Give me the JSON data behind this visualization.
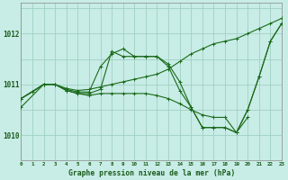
{
  "title": "Graphe pression niveau de la mer (hPa)",
  "bg_color": "#c8ece6",
  "grid_color_major": "#99ccbb",
  "grid_color_minor": "#aaddcc",
  "line_color": "#1a6b1a",
  "xlim": [
    0,
    23
  ],
  "ylim": [
    1009.5,
    1012.6
  ],
  "yticks": [
    1010,
    1011,
    1012
  ],
  "xticks": [
    0,
    1,
    2,
    3,
    4,
    5,
    6,
    7,
    8,
    9,
    10,
    11,
    12,
    13,
    14,
    15,
    16,
    17,
    18,
    19,
    20,
    21,
    22,
    23
  ],
  "lines": [
    {
      "x": [
        0,
        1,
        2,
        3,
        4,
        5,
        6,
        7,
        8,
        9,
        10,
        11,
        12,
        13,
        14,
        15,
        16,
        17,
        18,
        19,
        20,
        21,
        22,
        23
      ],
      "y": [
        1010.72,
        1010.85,
        1011.0,
        1011.0,
        1010.92,
        1010.88,
        1010.9,
        1010.95,
        1011.0,
        1011.05,
        1011.1,
        1011.15,
        1011.2,
        1011.3,
        1011.45,
        1011.6,
        1011.7,
        1011.8,
        1011.85,
        1011.9,
        1012.0,
        1012.1,
        1012.2,
        1012.3
      ]
    },
    {
      "x": [
        0,
        2,
        3,
        4,
        5,
        6,
        7,
        8,
        9,
        10,
        11,
        12,
        13,
        14,
        15,
        16,
        17,
        18,
        19,
        20,
        21,
        22,
        23
      ],
      "y": [
        1010.72,
        1011.0,
        1011.0,
        1010.9,
        1010.85,
        1010.85,
        1011.35,
        1011.6,
        1011.7,
        1011.55,
        1011.55,
        1011.55,
        1011.4,
        1011.05,
        1010.55,
        1010.15,
        1010.15,
        1010.15,
        1010.05,
        1010.5,
        1011.15,
        1011.85,
        1012.2
      ]
    },
    {
      "x": [
        0,
        2,
        3,
        4,
        5,
        6,
        7,
        8,
        9,
        10,
        11,
        12,
        13,
        14,
        15,
        16,
        17,
        18,
        19,
        20,
        21,
        22,
        23
      ],
      "y": [
        1010.72,
        1011.0,
        1011.0,
        1010.88,
        1010.82,
        1010.82,
        1010.9,
        1011.65,
        1011.55,
        1011.55,
        1011.55,
        1011.55,
        1011.35,
        1010.88,
        1010.55,
        1010.15,
        1010.15,
        1010.15,
        1010.05,
        1010.5,
        1011.15,
        1011.85,
        1012.2
      ]
    },
    {
      "x": [
        0,
        2,
        3,
        4,
        5,
        6,
        7,
        8,
        9,
        10,
        11,
        12,
        13,
        14,
        15,
        16,
        17,
        18,
        19,
        20
      ],
      "y": [
        1010.55,
        1011.0,
        1011.0,
        1010.88,
        1010.82,
        1010.78,
        1010.82,
        1010.82,
        1010.82,
        1010.82,
        1010.82,
        1010.78,
        1010.72,
        1010.62,
        1010.5,
        1010.4,
        1010.35,
        1010.35,
        1010.05,
        1010.35
      ]
    }
  ]
}
